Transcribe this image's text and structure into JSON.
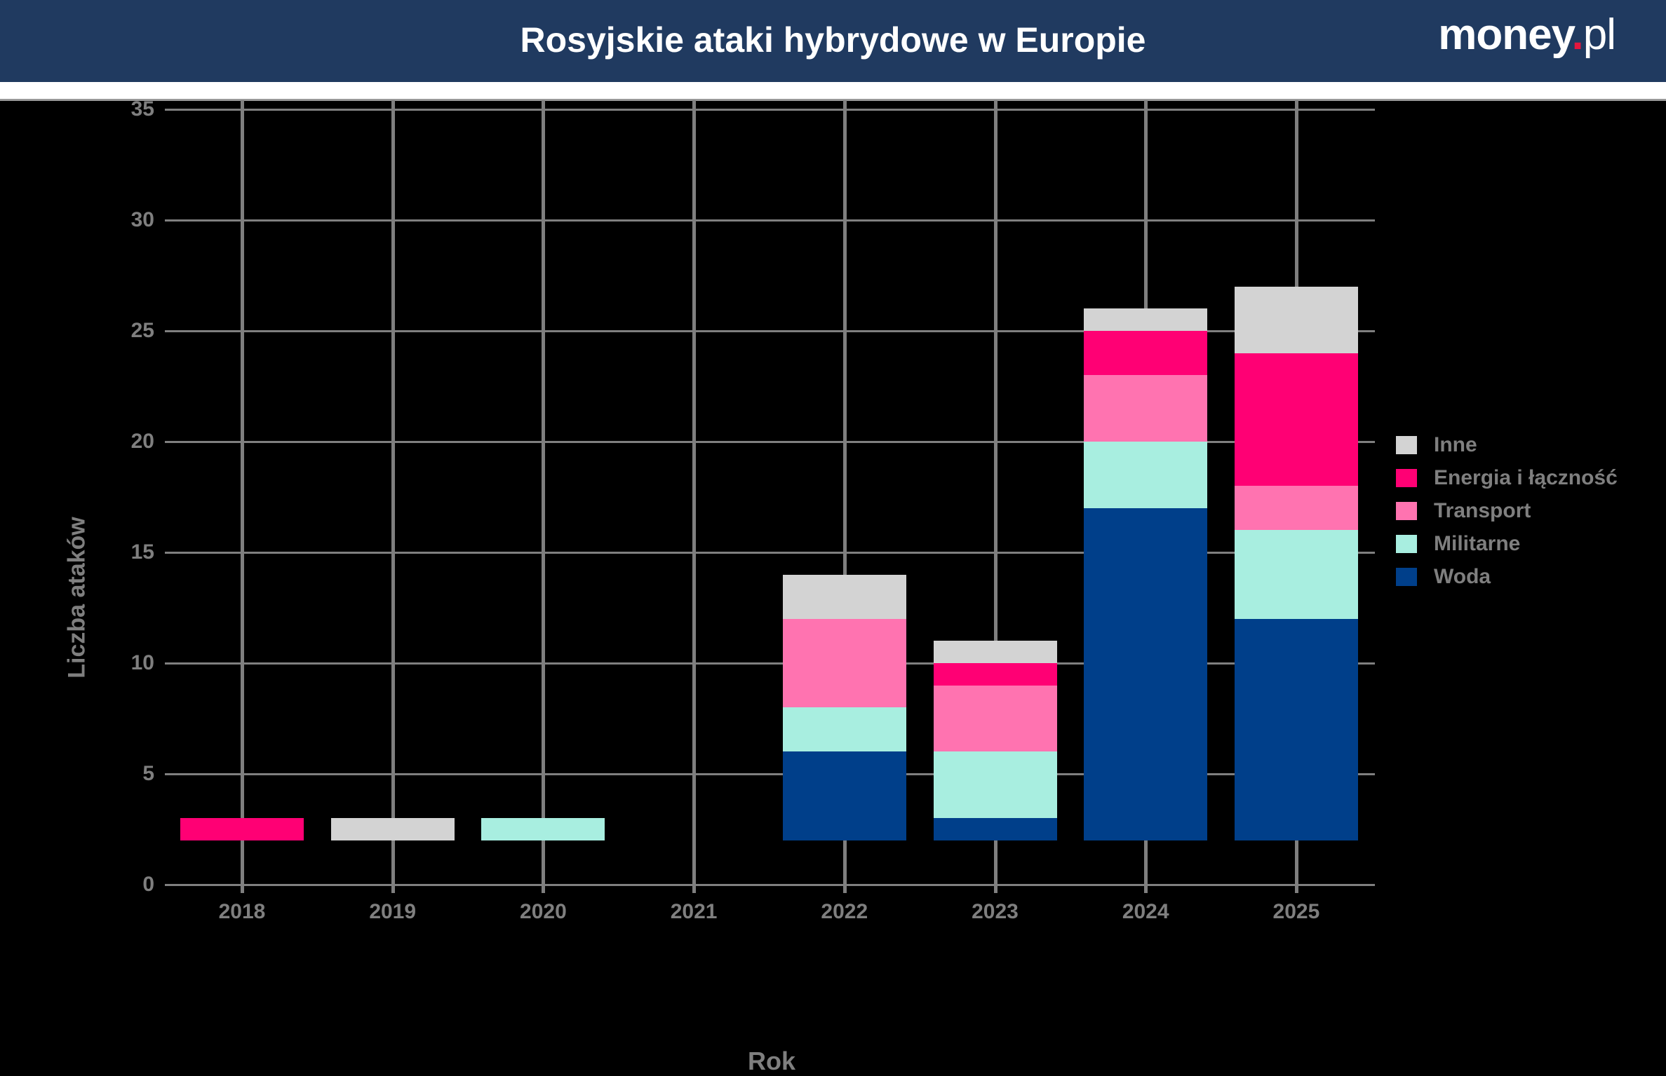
{
  "header": {
    "title": "Rosyjskie ataki hybrydowe w Europie",
    "logo_main": "money",
    "logo_dot": ".",
    "logo_suffix": "pl"
  },
  "colors": {
    "Inne": "#d3d3d3",
    "Energia i łączność": "#ff0074",
    "Transport": "#ff73b0",
    "Militarne": "#a8eee0",
    "Woda": "#003f8a",
    "header_bg": "#203a60"
  },
  "legend": [
    {
      "label": "Inne",
      "color": "#d3d3d3"
    },
    {
      "label": "Energia i łączność",
      "color": "#ff0074"
    },
    {
      "label": "Transport",
      "color": "#ff73b0"
    },
    {
      "label": "Militarne",
      "color": "#a8eee0"
    },
    {
      "label": "Woda",
      "color": "#003f8a"
    }
  ],
  "axes": {
    "xlabel": "Rok",
    "ylabel": "Liczba ataków",
    "yticks": [
      "0",
      "5",
      "10",
      "15",
      "20",
      "25",
      "30",
      "35"
    ],
    "xticks": [
      "2018",
      "2019",
      "2020",
      "2021",
      "2022",
      "2023",
      "2024",
      "2025"
    ]
  },
  "chart_data": {
    "type": "bar",
    "stacked": true,
    "title": "Rosyjskie ataki hybrydowe w Europie",
    "xlabel": "Rok",
    "ylabel": "Liczba ataków",
    "ylim": [
      0,
      35
    ],
    "grid": true,
    "legend_position": "right",
    "categories": [
      "2018",
      "2019",
      "2020",
      "2021",
      "2022",
      "2023",
      "2024",
      "2025"
    ],
    "series": [
      {
        "name": "Woda",
        "values": [
          0,
          0,
          0,
          0,
          4,
          1,
          15,
          10
        ]
      },
      {
        "name": "Militarne",
        "values": [
          0,
          0,
          1,
          0,
          2,
          3,
          3,
          4
        ]
      },
      {
        "name": "Transport",
        "values": [
          0,
          0,
          0,
          0,
          4,
          3,
          3,
          2
        ]
      },
      {
        "name": "Energia i łączność",
        "values": [
          1,
          0,
          0,
          0,
          0,
          1,
          2,
          6
        ]
      },
      {
        "name": "Inne",
        "values": [
          0,
          1,
          0,
          0,
          2,
          1,
          1,
          3
        ]
      }
    ],
    "note": "Bars are drawn starting from a baseline offset of y=2 in the image"
  }
}
